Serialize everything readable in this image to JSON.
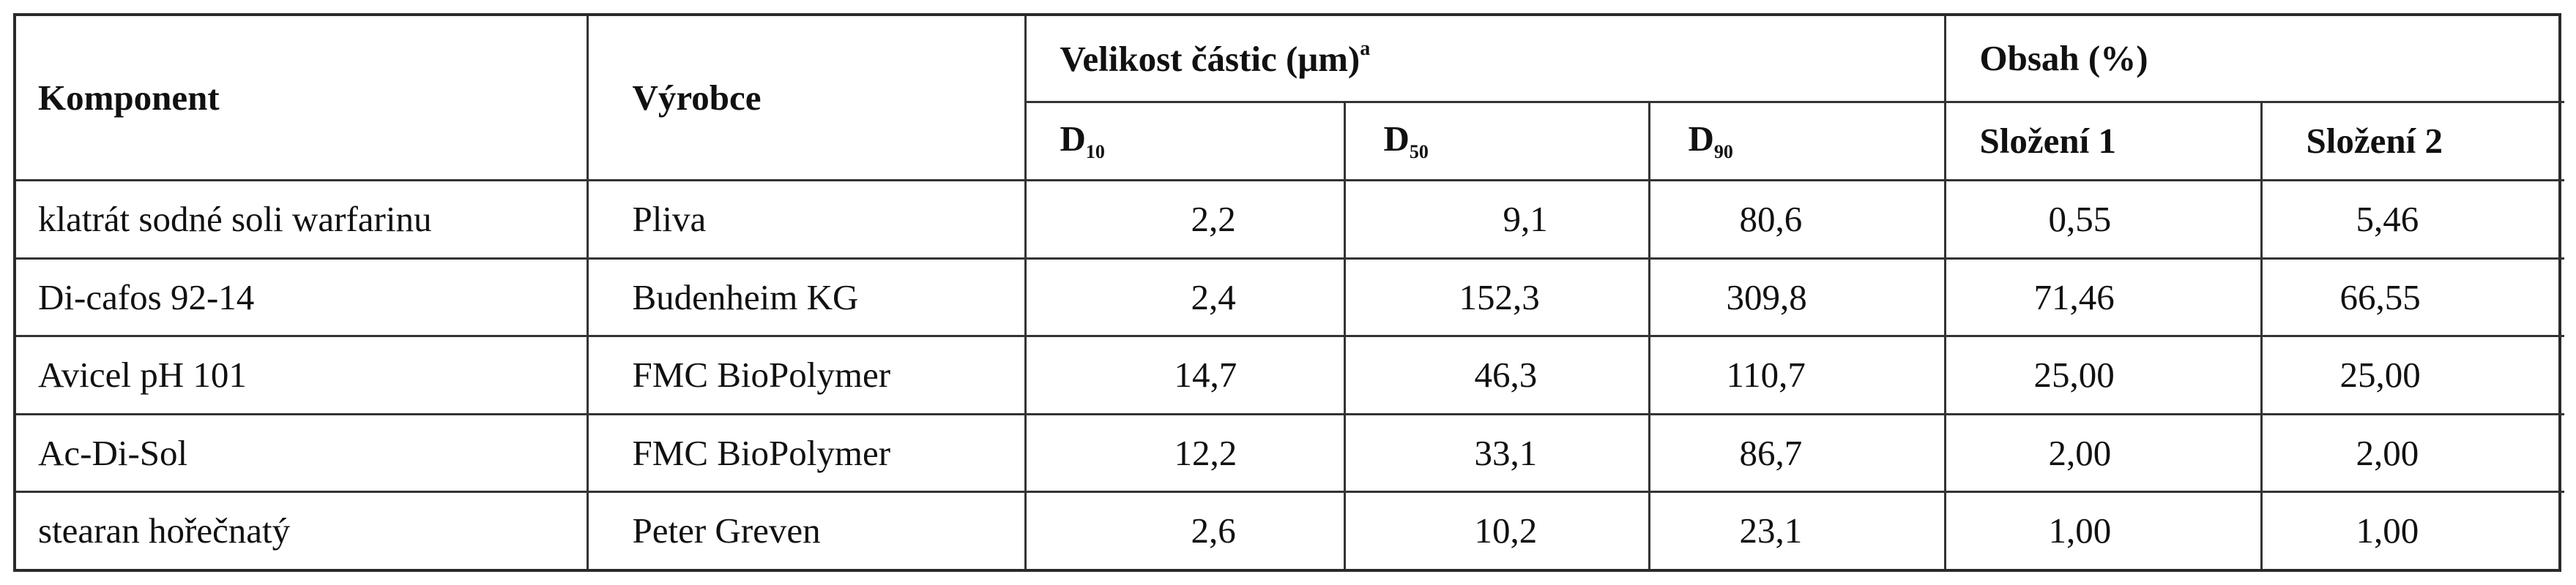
{
  "table": {
    "headers": {
      "component": "Komponent",
      "manufacturer": "Výrobce",
      "particle_size": "Velikost částic (μm)",
      "particle_size_sup": "a",
      "content": "Obsah (%)",
      "d_prefix": "D",
      "d10_sub": "10",
      "d50_sub": "50",
      "d90_sub": "90",
      "comp1": "Složení 1",
      "comp2": "Složení 2"
    },
    "rows": [
      {
        "component": "klatrát sodné soli warfarinu",
        "manufacturer": "Pliva",
        "d10": "2,2",
        "d50": "9,1",
        "d90": "80,6",
        "c1": "0,55",
        "c2": "5,46"
      },
      {
        "component": "Di-cafos  92-14",
        "manufacturer": "Budenheim KG",
        "d10": "2,4",
        "d50": "152,3",
        "d90": "309,8",
        "c1": "71,46",
        "c2": "66,55"
      },
      {
        "component": "Avicel pH 101",
        "manufacturer": "FMC BioPolymer",
        "d10": "14,7",
        "d50": "46,3",
        "d90": "110,7",
        "c1": "25,00",
        "c2": "25,00"
      },
      {
        "component": "Ac-Di-Sol",
        "manufacturer": "FMC BioPolymer",
        "d10": "12,2",
        "d50": "33,1",
        "d90": "86,7",
        "c1": "2,00",
        "c2": "2,00"
      },
      {
        "component": "stearan hořečnatý",
        "manufacturer": "Peter Greven",
        "d10": "2,6",
        "d50": "10,2",
        "d90": "23,1",
        "c1": "1,00",
        "c2": "1,00"
      }
    ]
  }
}
